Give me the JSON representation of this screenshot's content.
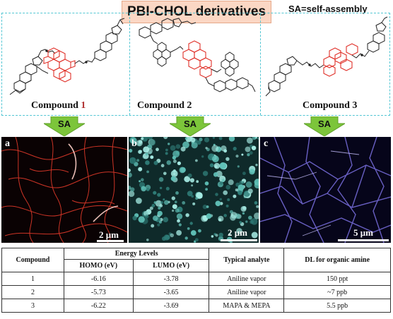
{
  "header": {
    "title": "PBI-CHOL derivatives",
    "sa_note": "SA=self-assembly"
  },
  "compounds": [
    {
      "label_prefix": "Compound ",
      "label_number": "1"
    },
    {
      "label_prefix": "Compound 2",
      "label_number": ""
    },
    {
      "label_prefix": "Compound 3",
      "label_number": ""
    }
  ],
  "arrows": [
    {
      "label": "SA"
    },
    {
      "label": "SA"
    },
    {
      "label": "SA"
    }
  ],
  "micrographs": [
    {
      "letter": "a",
      "scale": "2 μm",
      "color": "#e23a2a"
    },
    {
      "letter": "b",
      "scale": "2 μm",
      "color": "#6ecfc6"
    },
    {
      "letter": "c",
      "scale": "5 μm",
      "color": "#7a6fe0"
    }
  ],
  "table": {
    "col_compound": "Compound",
    "col_energy": "Energy Levels",
    "col_homo": "HOMO (eV)",
    "col_lumo": "LUMO (eV)",
    "col_analyte": "Typical analyte",
    "col_dl": "DL for organic amine",
    "rows": [
      {
        "compound": "1",
        "homo": "-6.16",
        "lumo": "-3.78",
        "analyte": "Aniline vapor",
        "dl": "150 ppt"
      },
      {
        "compound": "2",
        "homo": "-5.73",
        "lumo": "-3.65",
        "analyte": "Aniline vapor",
        "dl": "~7 ppb"
      },
      {
        "compound": "3",
        "homo": "-6.22",
        "lumo": "-3.69",
        "analyte": "MAPA & MEPA",
        "dl": "5.5 ppb"
      }
    ]
  },
  "colors": {
    "pbi_core": "#e0322a",
    "dash_border": "#52c6d3",
    "arrow_green": "#7cc53a",
    "title_bg": "#fbd7c4"
  }
}
